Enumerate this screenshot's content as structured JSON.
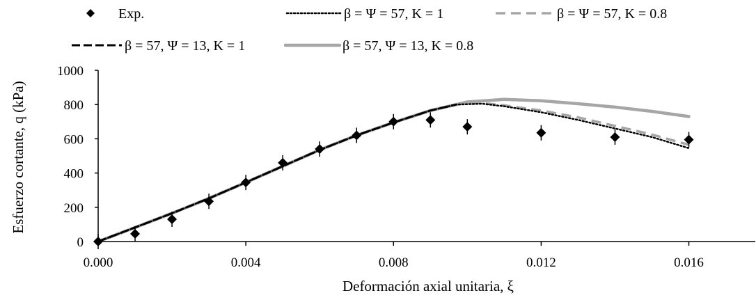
{
  "chart_data": {
    "type": "line",
    "xlabel": "Deformación axial unitaria, ξ",
    "ylabel": "Esfuerzo cortante, q (kPa)",
    "xlim": [
      0,
      0.0178
    ],
    "ylim": [
      0,
      1000
    ],
    "x_ticks": [
      "0.000",
      "0.004",
      "0.008",
      "0.012",
      "0.016"
    ],
    "y_ticks": [
      "0",
      "200",
      "400",
      "600",
      "800",
      "1000"
    ],
    "grid": false,
    "legend_position": "top",
    "series": [
      {
        "name": "Exp.",
        "kind": "scatter",
        "marker": "diamond",
        "color": "#000000",
        "x": [
          0.0,
          0.001,
          0.002,
          0.003,
          0.004,
          0.005,
          0.006,
          0.007,
          0.008,
          0.009,
          0.01,
          0.012,
          0.014,
          0.016
        ],
        "y": [
          0,
          45,
          130,
          235,
          345,
          460,
          540,
          620,
          700,
          710,
          670,
          635,
          610,
          595
        ]
      },
      {
        "name": "β = Ψ = 57, K = 1",
        "kind": "line",
        "style": "dotted",
        "color": "#000000",
        "x": [
          0.0,
          0.001,
          0.002,
          0.003,
          0.004,
          0.005,
          0.006,
          0.007,
          0.008,
          0.009,
          0.0097,
          0.0104,
          0.011,
          0.012,
          0.013,
          0.014,
          0.015,
          0.016
        ],
        "y": [
          0,
          82,
          165,
          252,
          345,
          440,
          535,
          620,
          695,
          765,
          800,
          805,
          790,
          755,
          710,
          660,
          610,
          545
        ]
      },
      {
        "name": "β = Ψ = 57, K = 0.8",
        "kind": "line",
        "style": "dashed",
        "color": "#a6a6a6",
        "x": [
          0.0,
          0.001,
          0.002,
          0.003,
          0.004,
          0.005,
          0.006,
          0.007,
          0.008,
          0.009,
          0.0097,
          0.0104,
          0.011,
          0.012,
          0.013,
          0.014,
          0.015,
          0.016
        ],
        "y": [
          0,
          82,
          165,
          252,
          345,
          440,
          535,
          620,
          695,
          765,
          802,
          808,
          795,
          765,
          725,
          675,
          625,
          565
        ]
      },
      {
        "name": "β = 57, Ψ = 13, K = 1",
        "kind": "line",
        "style": "long-dash",
        "color": "#000000",
        "x": [
          0.0,
          0.001,
          0.002,
          0.003,
          0.004,
          0.005,
          0.006,
          0.007,
          0.008,
          0.009,
          0.0097
        ],
        "y": [
          0,
          82,
          165,
          252,
          345,
          440,
          535,
          620,
          695,
          765,
          800
        ]
      },
      {
        "name": "β = 57, Ψ = 13, K = 0.8",
        "kind": "line",
        "style": "solid-thick",
        "color": "#a6a6a6",
        "x": [
          0.0,
          0.001,
          0.002,
          0.003,
          0.004,
          0.005,
          0.006,
          0.007,
          0.008,
          0.009,
          0.01,
          0.011,
          0.012,
          0.013,
          0.014,
          0.015,
          0.016
        ],
        "y": [
          0,
          82,
          165,
          252,
          345,
          440,
          535,
          620,
          695,
          765,
          815,
          830,
          822,
          805,
          785,
          760,
          730
        ]
      }
    ]
  }
}
